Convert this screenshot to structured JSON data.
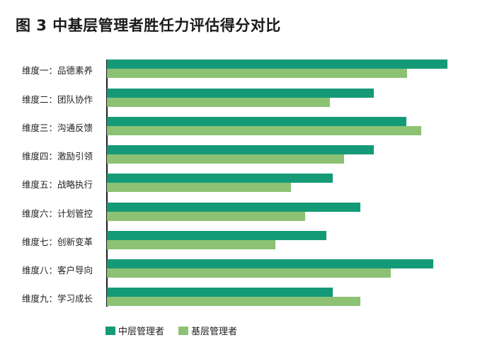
{
  "title": "图 3  中基层管理者胜任力评估得分对比",
  "colors": {
    "middle": "#159A78",
    "base": "#8DC274"
  },
  "legend": [
    {
      "label": "中层管理者",
      "color": "#159A78"
    },
    {
      "label": "基层管理者",
      "color": "#8DC274"
    }
  ],
  "chart_data": {
    "type": "bar",
    "orientation": "horizontal",
    "title": "图 3  中基层管理者胜任力评估得分对比",
    "xlabel": "",
    "ylabel": "",
    "note": "No value axis shown; values are relative bar lengths (px from axis).",
    "categories": [
      "维度一：品德素养",
      "维度二：团队协作",
      "维度三：沟通反馈",
      "维度四：激励引领",
      "维度五：战略执行",
      "维度六：计划管控",
      "维度七：创新变革",
      "维度八：客户导向",
      "维度九：学习成长"
    ],
    "series": [
      {
        "name": "中层管理者",
        "color": "#159A78",
        "values": [
          481,
          377,
          423,
          377,
          319,
          358,
          310,
          461,
          319
        ]
      },
      {
        "name": "基层管理者",
        "color": "#8DC274",
        "values": [
          424,
          315,
          444,
          335,
          260,
          280,
          238,
          401,
          358
        ]
      }
    ],
    "grid": false,
    "legend_position": "bottom-left"
  }
}
